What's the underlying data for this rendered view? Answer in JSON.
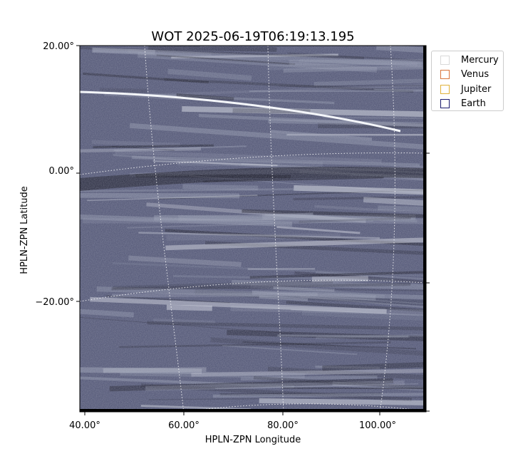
{
  "chart_data": {
    "type": "image",
    "title": "WOT 2025-06-19T06:19:13.195",
    "xlabel": "HPLN-ZPN Longitude",
    "ylabel": "HPLN-ZPN Latitude",
    "x_tick_labels": [
      "40.00°",
      "60.00°",
      "80.00°",
      "100.00°"
    ],
    "y_tick_labels": [
      "20.00°",
      "0.00°",
      "−20.00°"
    ],
    "x_ticks": [
      40,
      60,
      80,
      100
    ],
    "y_ticks": [
      20,
      0,
      -20
    ],
    "xlim": [
      39,
      110
    ],
    "ylim": [
      -37,
      20
    ],
    "grid": true,
    "grid_style": "dotted",
    "legend_position": "upper right, outside plot",
    "legend": [
      {
        "name": "Mercury",
        "color": "#d9d9d9"
      },
      {
        "name": "Venus",
        "color": "#d9733a"
      },
      {
        "name": "Jupiter",
        "color": "#e0b23a"
      },
      {
        "name": "Earth",
        "color": "#1a1a6e"
      }
    ],
    "image_colormap": [
      "#050510",
      "#4a4d6e",
      "#9aa0b4",
      "#f0f3f8"
    ]
  }
}
